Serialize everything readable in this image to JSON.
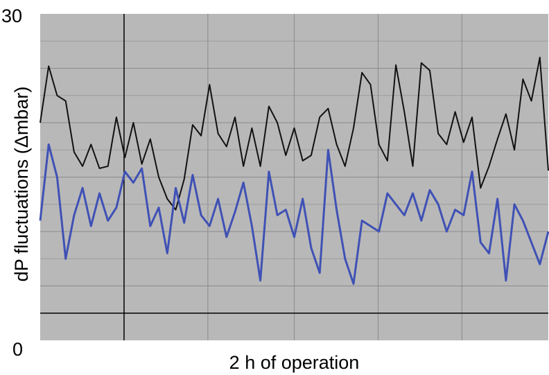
{
  "chart_data": {
    "type": "line",
    "title": "",
    "xlabel": "2 h of operation",
    "ylabel": "dP fluctuations (Δmbar)",
    "ylim": [
      0,
      30
    ],
    "y_tick_labels": [
      "30",
      "0"
    ],
    "grid": true,
    "plot_background": "#b8b8b8",
    "x": [
      0,
      1,
      2,
      3,
      4,
      5,
      6,
      7,
      8,
      9,
      10,
      11,
      12,
      13,
      14,
      15,
      16,
      17,
      18,
      19,
      20,
      21,
      22,
      23,
      24,
      25,
      26,
      27,
      28,
      29,
      30,
      31,
      32,
      33,
      34,
      35,
      36,
      37,
      38,
      39,
      40,
      41,
      42,
      43,
      44,
      45,
      46,
      47,
      48,
      49,
      50,
      51,
      52,
      53,
      54,
      55,
      56,
      57,
      58,
      59,
      60
    ],
    "series": [
      {
        "color": "#111111",
        "values": [
          20.0,
          25.2,
          22.5,
          22.0,
          17.3,
          16.0,
          18.0,
          15.8,
          16.0,
          20.5,
          16.8,
          20.0,
          16.2,
          18.5,
          15.0,
          13.0,
          12.0,
          14.8,
          19.8,
          18.8,
          23.5,
          19.0,
          17.8,
          20.5,
          16.0,
          19.5,
          16.0,
          21.5,
          20.0,
          17.0,
          19.5,
          16.5,
          17.0,
          20.5,
          21.3,
          18.0,
          16.0,
          19.5,
          24.6,
          23.5,
          18.0,
          16.5,
          25.3,
          21.0,
          16.0,
          25.5,
          24.8,
          19.0,
          18.0,
          21.0,
          18.2,
          20.5,
          14.0,
          16.0,
          18.5,
          20.8,
          17.5,
          24.0,
          22.0,
          26.0,
          15.6
        ]
      },
      {
        "color": "#3f51b5",
        "values": [
          11.0,
          18.0,
          15.0,
          7.5,
          11.5,
          14.0,
          10.5,
          13.5,
          11.0,
          12.2,
          15.5,
          14.5,
          15.8,
          10.5,
          12.2,
          8.0,
          14.0,
          10.8,
          15.2,
          11.5,
          10.5,
          13.0,
          9.5,
          11.8,
          14.5,
          10.5,
          5.5,
          15.5,
          11.5,
          12.0,
          9.5,
          13.0,
          8.5,
          6.2,
          17.5,
          12.0,
          7.5,
          5.2,
          11.0,
          10.5,
          10.0,
          13.5,
          12.5,
          11.5,
          13.5,
          11.0,
          13.8,
          12.5,
          10.0,
          12.0,
          11.5,
          15.5,
          9.0,
          8.0,
          13.0,
          5.5,
          12.5,
          11.0,
          9.0,
          7.0,
          10.0
        ]
      }
    ]
  }
}
